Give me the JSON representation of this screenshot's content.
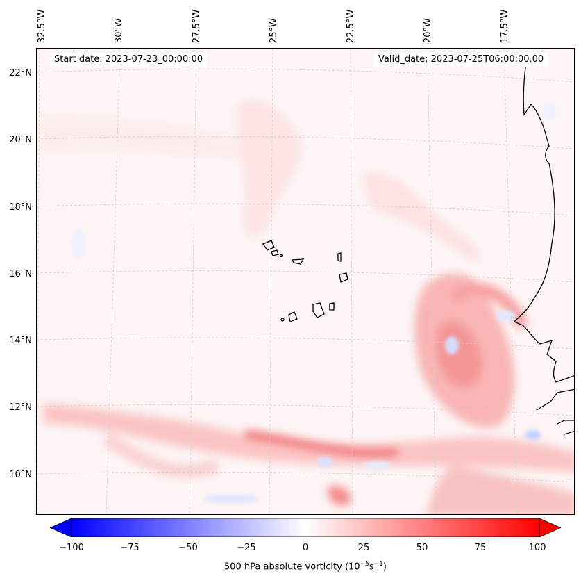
{
  "map": {
    "start_date": "Start date: 2023-07-23_00:00:00",
    "valid_date": "Valid_date: 2023-07-25T06:00:00.00",
    "lon_labels": [
      "32.5°W",
      "30°W",
      "27.5°W",
      "25°W",
      "22.5°W",
      "20°W",
      "17.5°W"
    ],
    "lat_labels": [
      "22°N",
      "20°N",
      "18°N",
      "16°N",
      "14°N",
      "12°N",
      "10°N"
    ],
    "variable": "500 hPa absolute vorticity",
    "units_base": "10",
    "units_exp1": "−5",
    "units_s": "s",
    "units_exp2": "−1",
    "colorbar": {
      "min": -100,
      "max": 100,
      "ticks": [
        "−100",
        "−75",
        "−50",
        "−25",
        "0",
        "25",
        "50",
        "75",
        "100"
      ],
      "low_color": "#0000ff",
      "mid_color": "#ffffff",
      "high_color": "#ff0000"
    },
    "features": [
      "Cape Verde islands",
      "West African coastline"
    ]
  }
}
